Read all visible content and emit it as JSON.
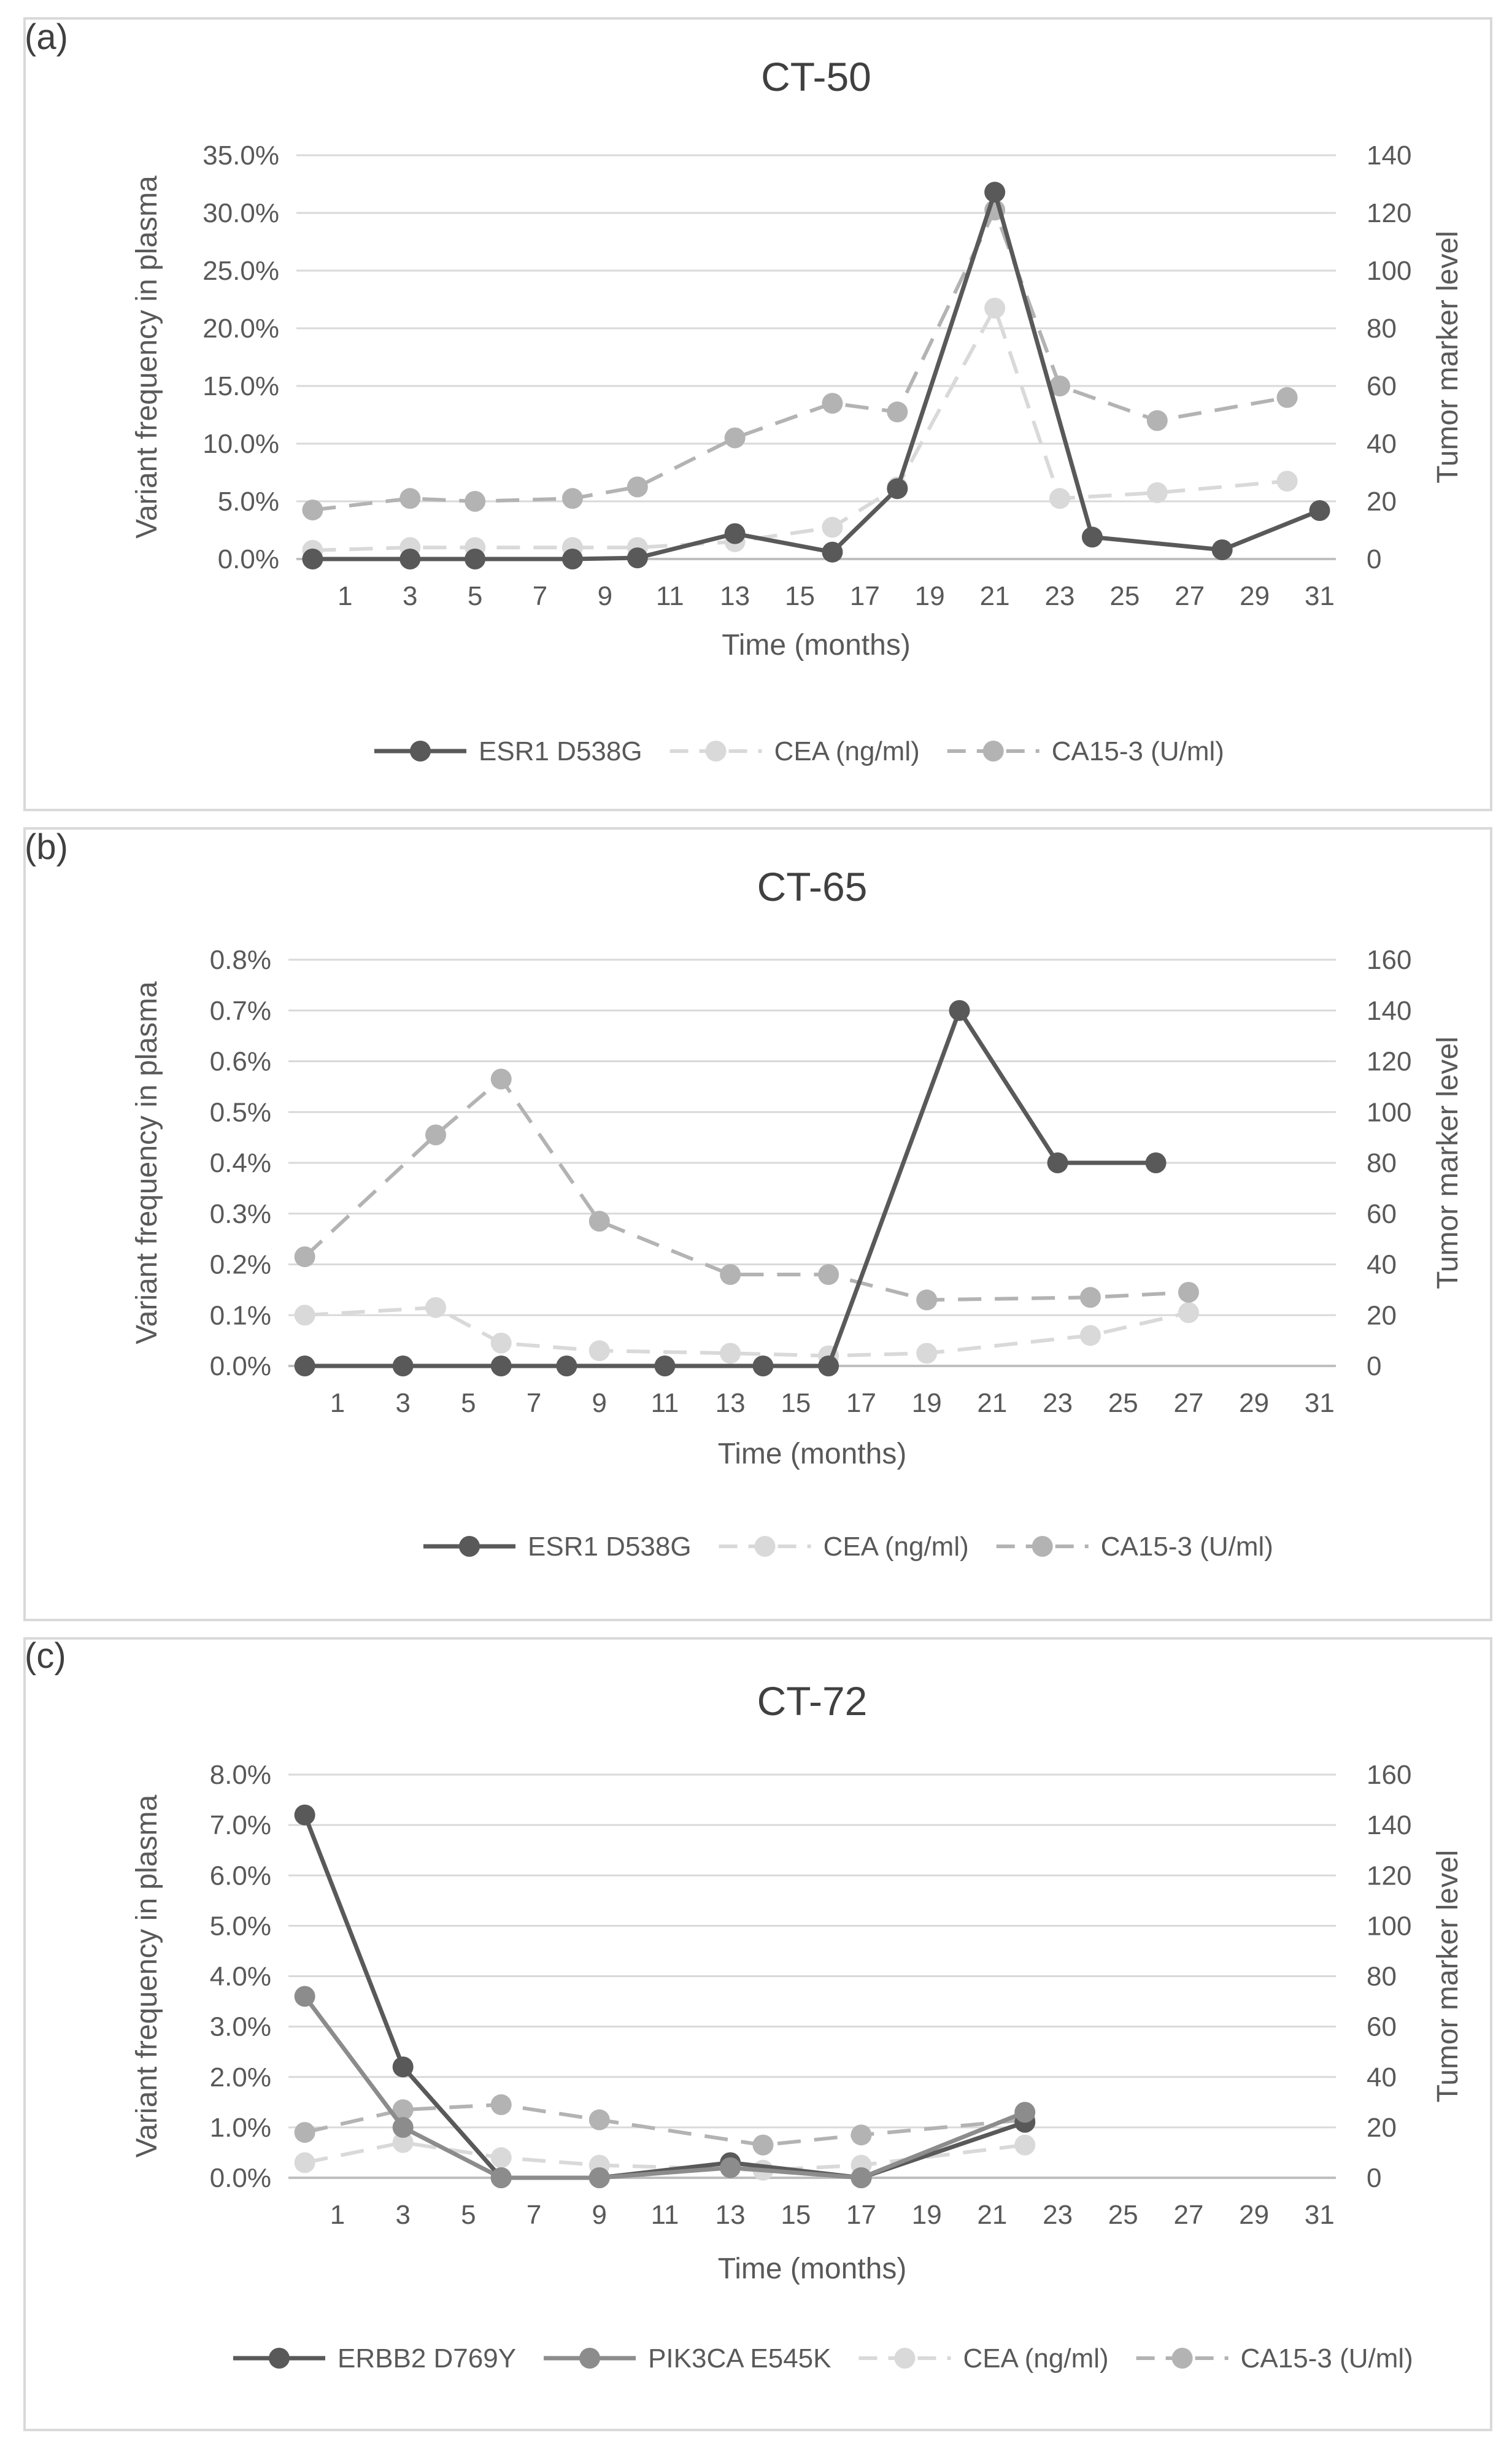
{
  "panels": [
    {
      "label": "(a)",
      "chart_data": {
        "type": "line",
        "title": "CT-50",
        "xlabel": "Time (months)",
        "ylabel": "Variant frequency in plasma",
        "y2label": "Tumor marker level",
        "xlim": [
          -0.5,
          31.5
        ],
        "x_ticks": [
          "1",
          "3",
          "5",
          "7",
          "9",
          "11",
          "13",
          "15",
          "17",
          "19",
          "21",
          "23",
          "25",
          "27",
          "29",
          "31"
        ],
        "ylim": [
          0,
          35
        ],
        "y_ticks": [
          "0.0%",
          "5.0%",
          "10.0%",
          "15.0%",
          "20.0%",
          "25.0%",
          "30.0%",
          "35.0%"
        ],
        "y_step": 5,
        "y2lim": [
          0,
          140
        ],
        "y2_ticks": [
          "0",
          "20",
          "40",
          "60",
          "80",
          "100",
          "120",
          "140"
        ],
        "y2_step": 20,
        "series": [
          {
            "name": "ESR1 D538G",
            "axis": "left",
            "style": "solid",
            "color": "#595959",
            "x": [
              0,
              3,
              5,
              8,
              10,
              13,
              16,
              18,
              21,
              24,
              28,
              31
            ],
            "values": [
              0,
              0,
              0,
              0,
              0.1,
              2.2,
              0.6,
              6.1,
              31.8,
              1.9,
              0.8,
              4.2
            ]
          },
          {
            "name": "CEA (ng/ml)",
            "axis": "right",
            "style": "dashed",
            "color": "#d9d9d9",
            "x": [
              0,
              3,
              5,
              8,
              10,
              13,
              16,
              18,
              21,
              23,
              26,
              30
            ],
            "values": [
              3,
              4,
              4,
              4,
              4,
              6,
              11,
              25,
              87,
              21,
              23,
              27
            ]
          },
          {
            "name": "CA15-3 (U/ml)",
            "axis": "right",
            "style": "dashed",
            "color": "#b3b3b3",
            "x": [
              0,
              3,
              5,
              8,
              10,
              13,
              16,
              18,
              21,
              23,
              26,
              30
            ],
            "values": [
              17,
              21,
              20,
              21,
              25,
              42,
              54,
              51,
              121,
              60,
              48,
              56
            ]
          }
        ]
      }
    },
    {
      "label": "(b)",
      "chart_data": {
        "type": "line",
        "title": "CT-65",
        "xlabel": "Time (months)",
        "ylabel": "Variant frequency in plasma",
        "y2label": "Tumor marker level",
        "xlim": [
          -0.5,
          31.5
        ],
        "x_ticks": [
          "1",
          "3",
          "5",
          "7",
          "9",
          "11",
          "13",
          "15",
          "17",
          "19",
          "21",
          "23",
          "25",
          "27",
          "29",
          "31"
        ],
        "ylim": [
          0,
          0.8
        ],
        "y_ticks": [
          "0.0%",
          "0.1%",
          "0.2%",
          "0.3%",
          "0.4%",
          "0.5%",
          "0.6%",
          "0.7%",
          "0.8%"
        ],
        "y_step": 0.1,
        "y2lim": [
          0,
          160
        ],
        "y2_ticks": [
          "0",
          "20",
          "40",
          "60",
          "80",
          "100",
          "120",
          "140",
          "160"
        ],
        "y2_step": 20,
        "series": [
          {
            "name": "ESR1 D538G",
            "axis": "left",
            "style": "solid",
            "color": "#595959",
            "x": [
              0,
              3,
              6,
              8,
              11,
              14,
              16,
              20,
              23,
              26
            ],
            "values": [
              0,
              0,
              0,
              0,
              0,
              0,
              0,
              0.7,
              0.4,
              0.4
            ]
          },
          {
            "name": "CEA (ng/ml)",
            "axis": "right",
            "style": "dashed",
            "color": "#d9d9d9",
            "x": [
              0,
              4,
              6,
              9,
              13,
              16,
              19,
              24,
              27
            ],
            "values": [
              20,
              23,
              9,
              6,
              5,
              4,
              5,
              12,
              21
            ]
          },
          {
            "name": "CA15-3 (U/ml)",
            "axis": "right",
            "style": "dashed",
            "color": "#b3b3b3",
            "x": [
              0,
              4,
              6,
              9,
              13,
              16,
              19,
              24,
              27
            ],
            "values": [
              43,
              91,
              113,
              57,
              36,
              36,
              26,
              27,
              29
            ]
          }
        ]
      }
    },
    {
      "label": "(c)",
      "chart_data": {
        "type": "line",
        "title": "CT-72",
        "xlabel": "Time (months)",
        "ylabel": "Variant frequency in plasma",
        "y2label": "Tumor marker level",
        "xlim": [
          -0.5,
          31.5
        ],
        "x_ticks": [
          "1",
          "3",
          "5",
          "7",
          "9",
          "11",
          "13",
          "15",
          "17",
          "19",
          "21",
          "23",
          "25",
          "27",
          "29",
          "31"
        ],
        "ylim": [
          0,
          8
        ],
        "y_ticks": [
          "0.0%",
          "1.0%",
          "2.0%",
          "3.0%",
          "4.0%",
          "5.0%",
          "6.0%",
          "7.0%",
          "8.0%"
        ],
        "y_step": 1,
        "y2lim": [
          0,
          160
        ],
        "y2_ticks": [
          "0",
          "20",
          "40",
          "60",
          "80",
          "100",
          "120",
          "140",
          "160"
        ],
        "y2_step": 20,
        "series": [
          {
            "name": "ERBB2 D769Y",
            "axis": "left",
            "style": "solid",
            "color": "#595959",
            "x": [
              0,
              3,
              6,
              9,
              13,
              17,
              22
            ],
            "values": [
              7.2,
              2.2,
              0,
              0,
              0.3,
              0,
              1.1
            ]
          },
          {
            "name": "PIK3CA E545K",
            "axis": "left",
            "style": "solid",
            "color": "#8c8c8c",
            "x": [
              0,
              3,
              6,
              9,
              13,
              17,
              22
            ],
            "values": [
              3.6,
              1.0,
              0,
              0,
              0.2,
              0,
              1.3
            ]
          },
          {
            "name": "CEA (ng/ml)",
            "axis": "right",
            "style": "dashed",
            "color": "#d9d9d9",
            "x": [
              0,
              3,
              6,
              9,
              14,
              17,
              22
            ],
            "values": [
              6,
              14,
              8,
              5,
              3,
              5,
              13
            ]
          },
          {
            "name": "CA15-3 (U/ml)",
            "axis": "right",
            "style": "dashed",
            "color": "#b3b3b3",
            "x": [
              0,
              3,
              6,
              9,
              14,
              17,
              22
            ],
            "values": [
              18,
              27,
              29,
              23,
              13,
              17,
              23
            ]
          }
        ]
      }
    }
  ]
}
